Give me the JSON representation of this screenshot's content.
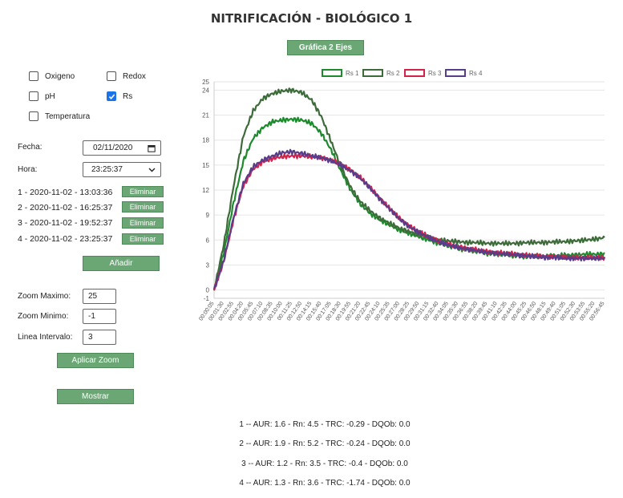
{
  "header": {
    "title": "NITRIFICACIÓN - BIOLÓGICO 1",
    "graph_button": "Gráfica 2 Ejes"
  },
  "checkboxes": [
    {
      "label": "Oxigeno",
      "checked": false
    },
    {
      "label": "Redox",
      "checked": false
    },
    {
      "label": "pH",
      "checked": false
    },
    {
      "label": "Rs",
      "checked": true
    },
    {
      "label": "Temperatura",
      "checked": false
    }
  ],
  "form": {
    "fecha_label": "Fecha:",
    "fecha_value": "02/11/2020",
    "hora_label": "Hora:",
    "hora_value": "23:25:37"
  },
  "entries": [
    {
      "text": "1 - 2020-11-02 - 13:03:36",
      "button": "Eliminar"
    },
    {
      "text": "2 - 2020-11-02 - 16:25:37",
      "button": "Eliminar"
    },
    {
      "text": "3 - 2020-11-02 - 19:52:37",
      "button": "Eliminar"
    },
    {
      "text": "4 - 2020-11-02 - 23:25:37",
      "button": "Eliminar"
    }
  ],
  "add_button": "Añadir",
  "zoom": {
    "max_label": "Zoom Maximo:",
    "max_value": "25",
    "min_label": "Zoom Minimo:",
    "min_value": "-1",
    "interval_label": "Linea Intervalo:",
    "interval_value": "3",
    "apply_button": "Aplicar Zoom"
  },
  "show_button": "Mostrar",
  "summaries": [
    "1 -- AUR: 1.6 - Rn: 4.5 - TRC: -0.29 - DQOb: 0.0",
    "2 -- AUR: 1.9 - Rn: 5.2 - TRC: -0.24 - DQOb: 0.0",
    "3 -- AUR: 1.2 - Rn: 3.5 - TRC: -0.4 - DQOb: 0.0",
    "4 -- AUR: 1.3 - Rn: 3.6 - TRC: -1.74 - DQOb: 0.0"
  ],
  "chart_data": {
    "type": "line",
    "ylim": [
      -1,
      25
    ],
    "yticks": [
      -1,
      0,
      3,
      6,
      9,
      12,
      15,
      18,
      21,
      24,
      25
    ],
    "x_labels": [
      "00:00:05",
      "00:01:30",
      "00:02:55",
      "00:04:20",
      "00:05:45",
      "00:07:10",
      "00:08:35",
      "00:10:00",
      "00:11:25",
      "00:12:50",
      "00:14:15",
      "00:15:40",
      "00:17:05",
      "00:18:30",
      "00:19:55",
      "00:21:20",
      "00:22:45",
      "00:24:10",
      "00:25:35",
      "00:27:00",
      "00:28:25",
      "00:29:50",
      "00:31:15",
      "00:32:40",
      "00:34:05",
      "00:35:30",
      "00:36:55",
      "00:38:20",
      "00:39:45",
      "00:41:10",
      "00:42:35",
      "00:44:00",
      "00:45:25",
      "00:46:50",
      "00:48:15",
      "00:49:40",
      "00:51:05",
      "00:52:30",
      "00:53:55",
      "00:55:20",
      "00:56:45"
    ],
    "grid": true,
    "legend_position": "top",
    "series": [
      {
        "name": "Rs 1",
        "color": "#1e8a2e",
        "values": [
          0,
          4.5,
          10.5,
          15.5,
          18.2,
          19.5,
          20.2,
          20.4,
          20.5,
          20.4,
          20.0,
          18.8,
          16.8,
          14.3,
          12.0,
          10.3,
          9.2,
          8.4,
          7.8,
          7.2,
          6.8,
          6.4,
          6.0,
          5.6,
          5.3,
          5.0,
          4.8,
          4.6,
          4.4,
          4.3,
          4.2,
          4.1,
          4.0,
          4.0,
          4.1,
          4.1,
          4.2,
          4.2,
          4.3,
          4.3,
          4.3
        ]
      },
      {
        "name": "Rs 2",
        "color": "#3d6b3a",
        "values": [
          0,
          5.5,
          12.5,
          18.5,
          21.5,
          23.0,
          23.6,
          23.9,
          24.0,
          23.7,
          22.8,
          20.8,
          17.8,
          14.8,
          12.3,
          10.6,
          9.5,
          8.6,
          8.0,
          7.4,
          7.0,
          6.6,
          6.3,
          6.0,
          5.9,
          5.8,
          5.7,
          5.7,
          5.6,
          5.6,
          5.6,
          5.6,
          5.7,
          5.7,
          5.7,
          5.8,
          5.8,
          5.9,
          6.0,
          6.1,
          6.3
        ]
      },
      {
        "name": "Rs 3",
        "color": "#d4234a",
        "values": [
          0,
          3.5,
          8.5,
          12.5,
          14.5,
          15.4,
          15.8,
          16.0,
          16.1,
          16.1,
          16.0,
          15.9,
          15.6,
          15.1,
          14.4,
          13.5,
          12.3,
          11.0,
          9.8,
          8.6,
          7.7,
          7.0,
          6.4,
          5.9,
          5.5,
          5.2,
          5.0,
          4.8,
          4.6,
          4.5,
          4.4,
          4.3,
          4.2,
          4.1,
          4.0,
          4.0,
          3.9,
          3.9,
          3.9,
          3.9,
          3.9
        ]
      },
      {
        "name": "Rs 4",
        "color": "#5a3d8a",
        "values": [
          0,
          3.6,
          8.7,
          12.8,
          14.8,
          15.6,
          16.1,
          16.5,
          16.6,
          16.4,
          16.1,
          15.9,
          15.5,
          15.0,
          14.3,
          13.4,
          12.2,
          10.9,
          9.7,
          8.5,
          7.6,
          6.9,
          6.3,
          5.8,
          5.4,
          5.1,
          4.9,
          4.7,
          4.5,
          4.4,
          4.3,
          4.2,
          4.1,
          4.0,
          3.9,
          3.9,
          3.8,
          3.8,
          3.8,
          3.8,
          3.8
        ]
      }
    ]
  }
}
